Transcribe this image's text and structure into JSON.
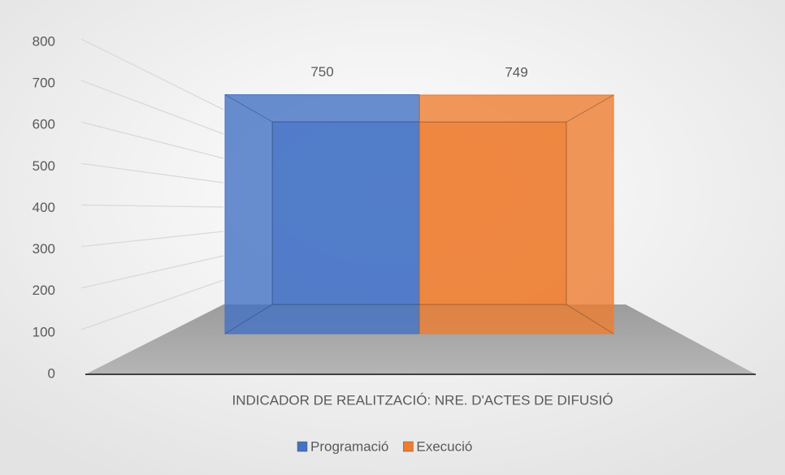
{
  "chart_data": {
    "type": "bar3d",
    "categories": [
      "INDICADOR DE REALITZACIÓ: NRE. D'ACTES DE DIFUSIÓ"
    ],
    "series": [
      {
        "name": "Programació",
        "color": "#4472c4",
        "values": [
          750
        ]
      },
      {
        "name": "Execució",
        "color": "#ed7d31",
        "values": [
          749
        ]
      }
    ],
    "ylim": [
      0,
      800
    ],
    "yticks": [
      0,
      100,
      200,
      300,
      400,
      500,
      600,
      700,
      800
    ],
    "grid": true,
    "legend": "bottom"
  }
}
